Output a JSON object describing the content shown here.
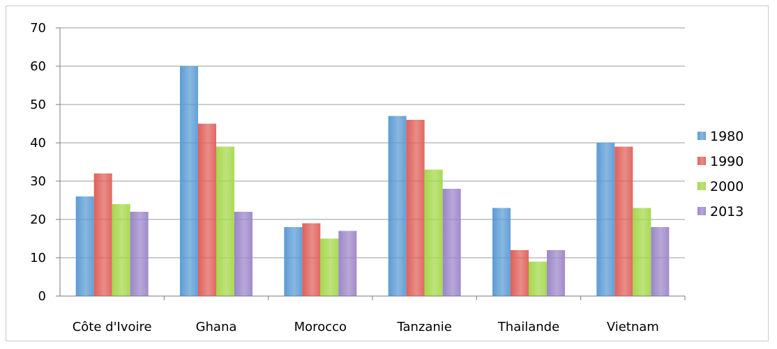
{
  "chart_data": {
    "type": "bar",
    "categories": [
      "Côte d'Ivoire",
      "Ghana",
      "Morocco",
      "Tanzanie",
      "Thailande",
      "Vietnam"
    ],
    "series": [
      {
        "name": "1980",
        "color": "#5b9bd5",
        "values": [
          26,
          60,
          18,
          47,
          23,
          40
        ]
      },
      {
        "name": "1990",
        "color": "#e0605a",
        "values": [
          32,
          45,
          19,
          46,
          12,
          39
        ]
      },
      {
        "name": "2000",
        "color": "#a5d84a",
        "values": [
          24,
          39,
          15,
          33,
          9,
          23
        ]
      },
      {
        "name": "2013",
        "color": "#9b86c8",
        "values": [
          22,
          22,
          17,
          28,
          12,
          18
        ]
      }
    ],
    "ylim": [
      0,
      70
    ],
    "yticks": [
      0,
      10,
      20,
      30,
      40,
      50,
      60,
      70
    ],
    "ytick_labels": [
      "0",
      "10",
      "20",
      "30",
      "40",
      "50",
      "60",
      "70"
    ],
    "grid": true,
    "legend_position": "right"
  }
}
